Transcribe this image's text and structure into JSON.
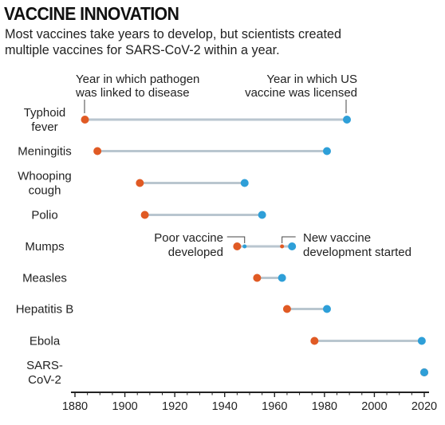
{
  "title": "VACCINE INNOVATION",
  "subtitle": "Most vaccines take years to develop, but scientists created multiple vaccines for SARS-CoV-2 within a year.",
  "colors": {
    "linked": "#e05a24",
    "licensed": "#2e9fd8",
    "connector": "#b9c6cf",
    "axis": "#222222"
  },
  "chart_data": {
    "type": "dumbbell",
    "title": "VACCINE INNOVATION",
    "subtitle": "Most vaccines take years to develop, but scientists created multiple vaccines for SARS-CoV-2 within a year.",
    "xlim": [
      1880,
      2020
    ],
    "xticks": [
      1880,
      1900,
      1920,
      1940,
      1960,
      1980,
      2000,
      2020
    ],
    "series": [
      {
        "name": "Year in which pathogen was linked to disease",
        "color": "#e05a24"
      },
      {
        "name": "Year in which US vaccine was licensed",
        "color": "#2e9fd8"
      }
    ],
    "legend_labels": [
      [
        "Year in which pathogen",
        "was linked to disease"
      ],
      [
        "Year in which US",
        "vaccine was licensed"
      ]
    ],
    "rows": [
      {
        "label": [
          "Typhoid",
          "fever"
        ],
        "linked": 1884,
        "licensed": 1989
      },
      {
        "label": [
          "Meningitis"
        ],
        "linked": 1889,
        "licensed": 1981
      },
      {
        "label": [
          "Whooping",
          "cough"
        ],
        "linked": 1906,
        "licensed": 1948
      },
      {
        "label": [
          "Polio"
        ],
        "linked": 1908,
        "licensed": 1955
      },
      {
        "label": [
          "Mumps"
        ],
        "linked": 1945,
        "licensed": 1967,
        "events": [
          {
            "year": 1948,
            "label": [
              "Poor vaccine",
              "developed"
            ],
            "side": "left"
          },
          {
            "year": 1963,
            "label": [
              "New vaccine",
              "development started"
            ],
            "side": "right"
          }
        ]
      },
      {
        "label": [
          "Measles"
        ],
        "linked": 1953,
        "licensed": 1963
      },
      {
        "label": [
          "Hepatitis B"
        ],
        "linked": 1965,
        "licensed": 1981
      },
      {
        "label": [
          "Ebola"
        ],
        "linked": 1976,
        "licensed": 2019
      },
      {
        "label": [
          "SARS-",
          "CoV-2"
        ],
        "linked": 2020,
        "licensed": 2020
      }
    ]
  }
}
